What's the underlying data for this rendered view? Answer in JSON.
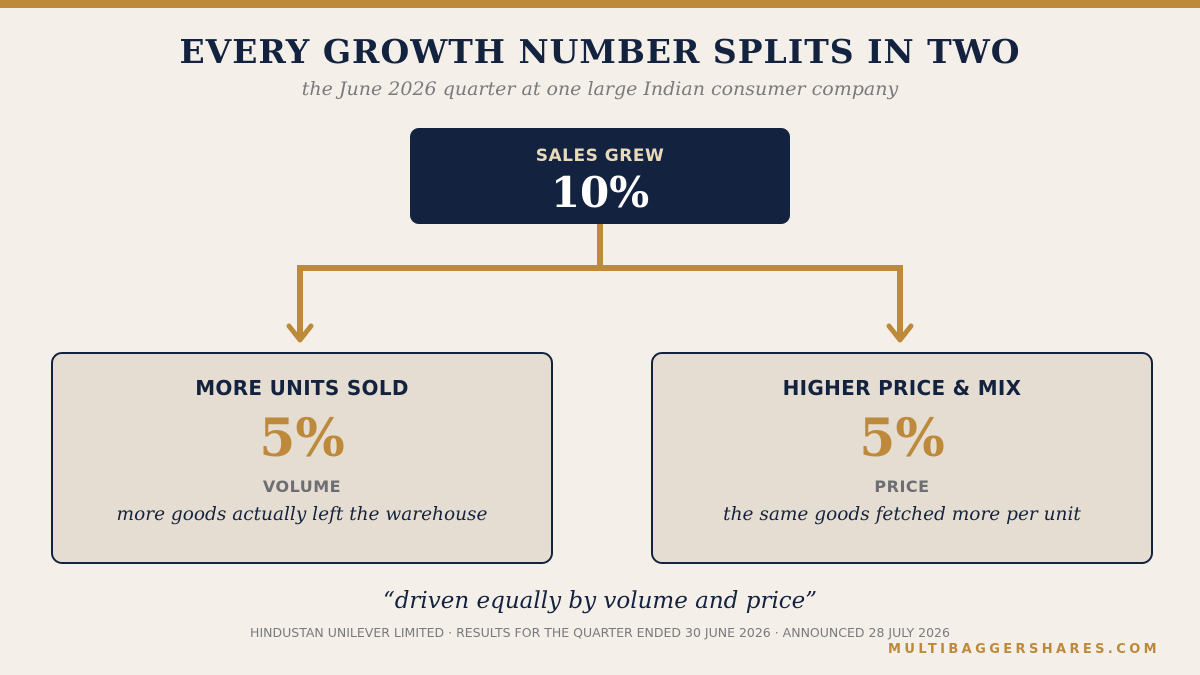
{
  "title": "EVERY GROWTH NUMBER SPLITS IN TWO",
  "subtitle": "the June 2026 quarter at one large Indian consumer company",
  "total": {
    "label": "SALES GREW",
    "value": "10%"
  },
  "components": [
    {
      "heading": "MORE UNITS SOLD",
      "value": "5%",
      "kind": "VOLUME",
      "description": "more goods actually left the warehouse"
    },
    {
      "heading": "HIGHER PRICE & MIX",
      "value": "5%",
      "kind": "PRICE",
      "description": "the same goods fetched more per unit"
    }
  ],
  "quote": "“driven equally by volume and price”",
  "source": "HINDUSTAN UNILEVER LIMITED · RESULTS FOR THE QUARTER ENDED 30 JUNE 2026 · ANNOUNCED 28 JULY 2026",
  "brand": "MULTIBAGGERSHARES.COM",
  "colors": {
    "background": "#f4efe8",
    "navy": "#13233f",
    "gold": "#bd8a3c",
    "card": "#e5ddd1",
    "muted": "#7a7a7e"
  }
}
